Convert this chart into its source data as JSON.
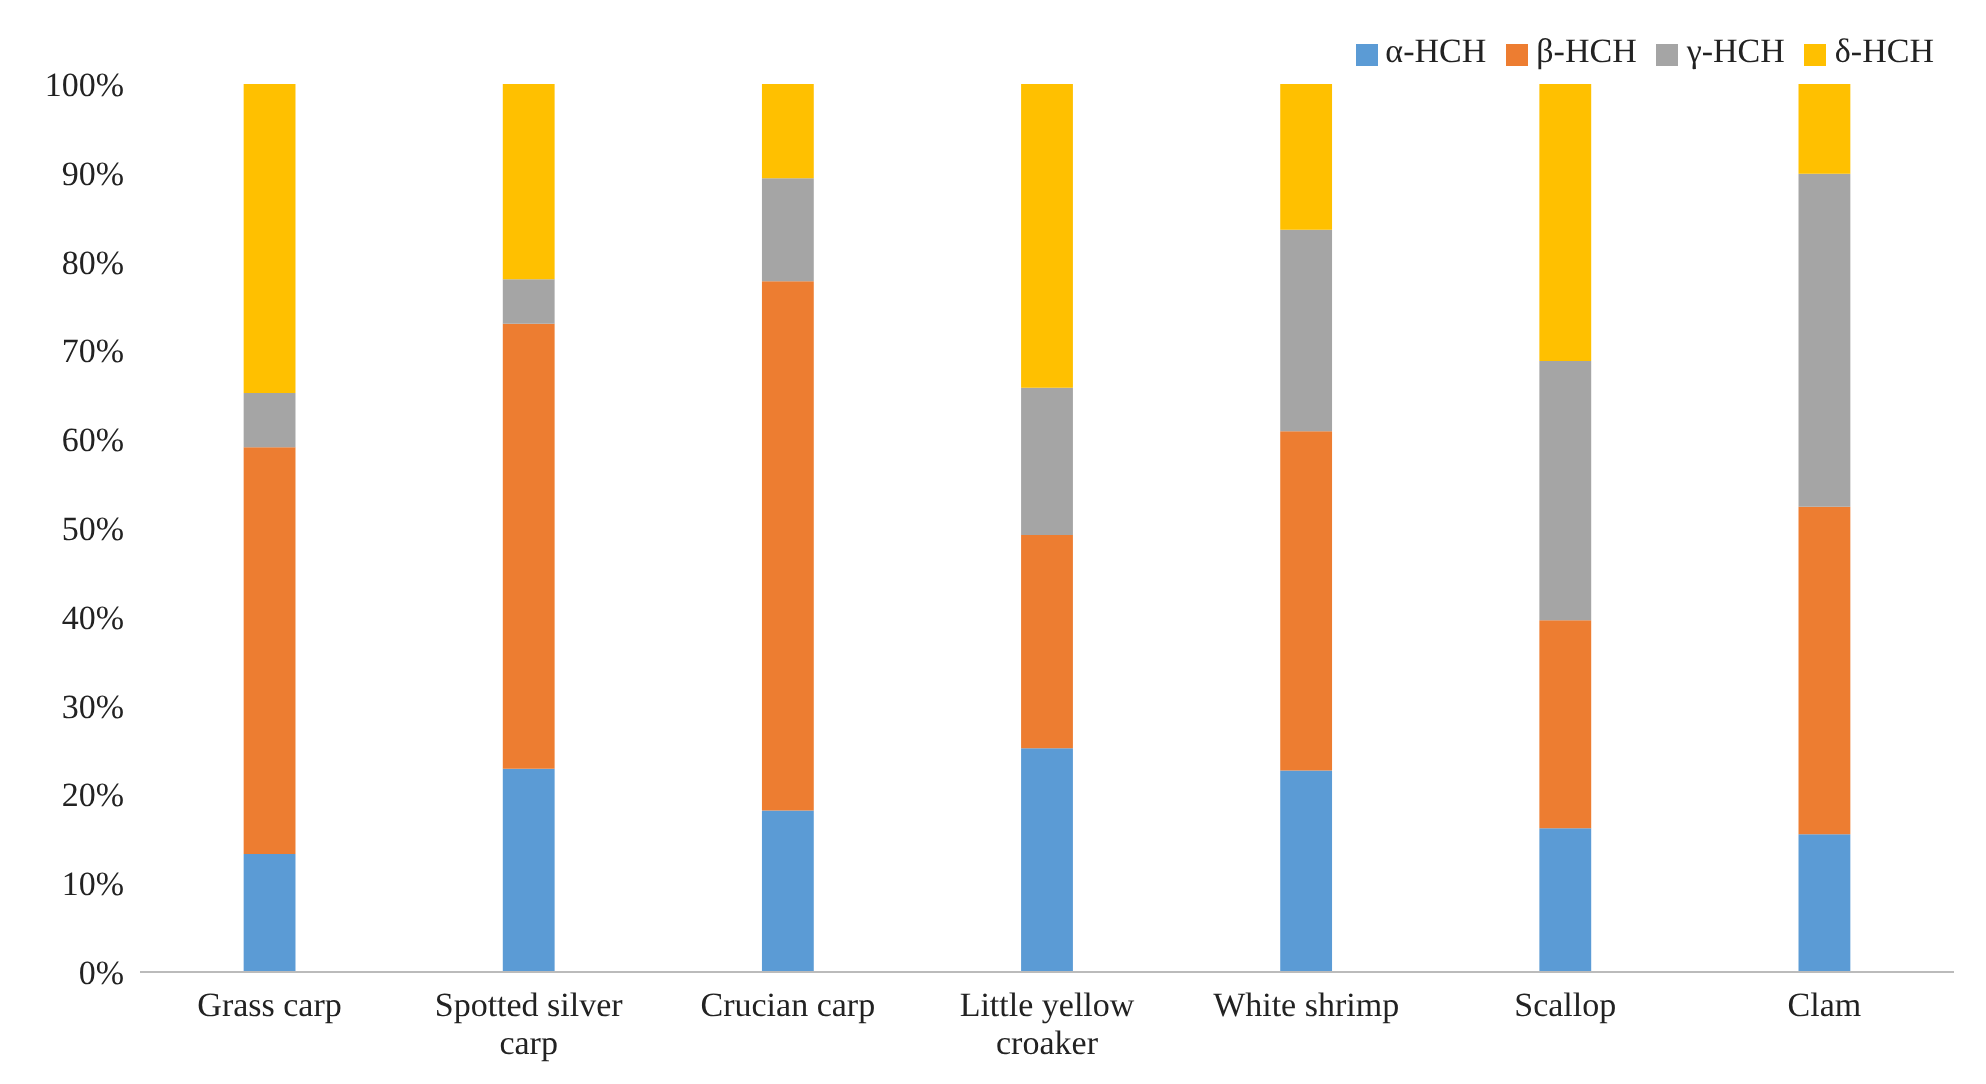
{
  "chart_data": {
    "type": "bar",
    "stacked": true,
    "categories": [
      "Grass carp",
      "Spotted silver carp",
      "Crucian carp",
      "Little yellow croaker",
      "White shrimp",
      "Scallop",
      "Clam"
    ],
    "series": [
      {
        "name": "α-HCH",
        "color": "#5b9bd5",
        "values": [
          13.3,
          22.9,
          18.2,
          25.2,
          22.7,
          16.2,
          15.5
        ]
      },
      {
        "name": "β-HCH",
        "color": "#ed7d31",
        "values": [
          45.8,
          50.1,
          59.6,
          24.0,
          38.2,
          23.4,
          36.9
        ]
      },
      {
        "name": "γ-HCH",
        "color": "#a5a5a5",
        "values": [
          6.1,
          5.0,
          11.6,
          16.6,
          22.7,
          29.2,
          37.5
        ]
      },
      {
        "name": "δ-HCH",
        "color": "#ffc000",
        "values": [
          34.8,
          22.0,
          10.6,
          34.2,
          16.4,
          31.2,
          10.1
        ]
      }
    ],
    "ylim": [
      0,
      100
    ],
    "yticks": [
      {
        "value": 0,
        "label": "0%"
      },
      {
        "value": 10,
        "label": "10%"
      },
      {
        "value": 20,
        "label": "20%"
      },
      {
        "value": 30,
        "label": "30%"
      },
      {
        "value": 40,
        "label": "40%"
      },
      {
        "value": 50,
        "label": "50%"
      },
      {
        "value": 60,
        "label": "60%"
      },
      {
        "value": 70,
        "label": "70%"
      },
      {
        "value": 80,
        "label": "80%"
      },
      {
        "value": 90,
        "label": "90%"
      },
      {
        "value": 100,
        "label": "100%"
      }
    ],
    "grid": false,
    "legend": "top right"
  }
}
